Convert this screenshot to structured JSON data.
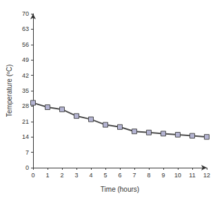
{
  "chart_data": {
    "type": "line",
    "x_label": "Time (hours)",
    "y_label": "Temperature (ºC)",
    "x": [
      0,
      1,
      2,
      3,
      4,
      5,
      6,
      7,
      8,
      9,
      10,
      11,
      12
    ],
    "values": [
      29.5,
      27.5,
      26.5,
      23.5,
      22,
      19.5,
      18.5,
      16.5,
      16,
      15.5,
      15,
      14.5,
      14
    ],
    "color": "#4a4a4a",
    "marker": "square",
    "line_style": "solid",
    "xlim": [
      0,
      12
    ],
    "xticks": [
      0,
      1,
      2,
      3,
      4,
      5,
      6,
      7,
      8,
      9,
      10,
      11,
      12
    ],
    "ylim": [
      0,
      70
    ],
    "yticks": [
      0,
      7,
      14,
      21,
      28,
      35,
      42,
      49,
      56,
      63,
      70
    ],
    "grid": false
  }
}
